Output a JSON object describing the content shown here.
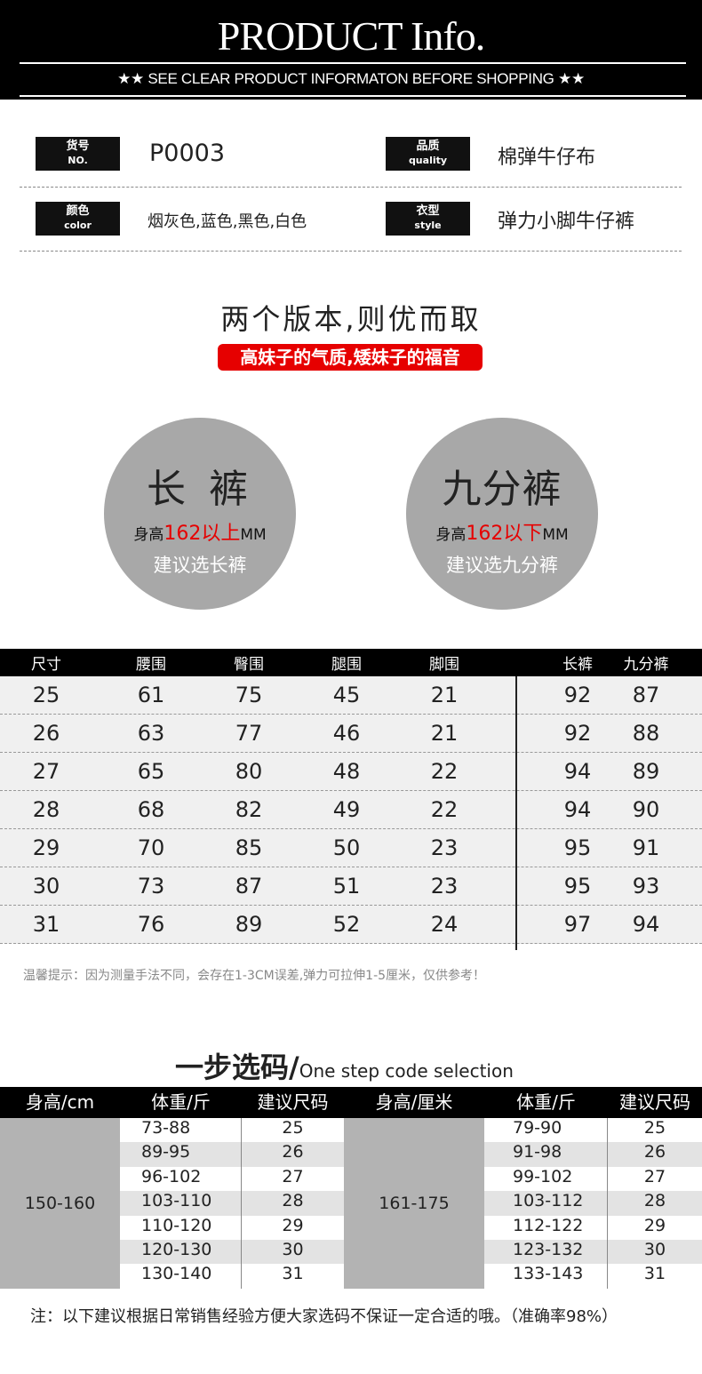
{
  "header": {
    "title": "PRODUCT Info.",
    "subtitle": "★★  SEE CLEAR PRODUCT INFORMATON BEFORE SHOPPING  ★★"
  },
  "info": [
    {
      "label": "货号",
      "label_en": "NO.",
      "value": "P0003"
    },
    {
      "label": "品质",
      "label_en": "quality",
      "value": "棉弹牛仔布"
    },
    {
      "label": "颜色",
      "label_en": "color",
      "value": "烟灰色,蓝色,黑色,白色"
    },
    {
      "label": "衣型",
      "label_en": "style",
      "value": "弹力小脚牛仔裤"
    }
  ],
  "versions": {
    "title": "两个版本,则优而取",
    "badge": "高妹子的气质,矮妹子的福音",
    "items": [
      {
        "name": "长 裤",
        "pre": "身高",
        "highlight": "162以上",
        "unit": "MM",
        "advice": "建议选长裤"
      },
      {
        "name": "九分裤",
        "pre": "身高",
        "highlight": "162以下",
        "unit": "MM",
        "advice": "建议选九分裤"
      }
    ],
    "accent": "#e60000"
  },
  "size_table": {
    "headers": [
      "尺寸",
      "腰围",
      "臀围",
      "腿围",
      "脚围",
      "长裤",
      "九分裤"
    ],
    "rows": [
      [
        "25",
        "61",
        "75",
        "45",
        "21",
        "92",
        "87"
      ],
      [
        "26",
        "63",
        "77",
        "46",
        "21",
        "92",
        "88"
      ],
      [
        "27",
        "65",
        "80",
        "48",
        "22",
        "94",
        "89"
      ],
      [
        "28",
        "68",
        "82",
        "49",
        "22",
        "94",
        "90"
      ],
      [
        "29",
        "70",
        "85",
        "50",
        "23",
        "95",
        "91"
      ],
      [
        "30",
        "73",
        "87",
        "51",
        "23",
        "95",
        "93"
      ],
      [
        "31",
        "76",
        "89",
        "52",
        "24",
        "97",
        "94"
      ]
    ],
    "note": "温馨提示：因为测量手法不同，会存在1-3CM误差,弹力可拉伸1-5厘米，仅供参考！"
  },
  "selection": {
    "title": "一步选码/",
    "title_en": "One step code selection",
    "headers": [
      "身高/cm",
      "体重/斤",
      "建议尺码",
      "身高/厘米",
      "体重/斤",
      "建议尺码"
    ],
    "left_height": "150-160",
    "right_height": "161-175",
    "left": [
      [
        "73-88",
        "25"
      ],
      [
        "89-95",
        "26"
      ],
      [
        "96-102",
        "27"
      ],
      [
        "103-110",
        "28"
      ],
      [
        "110-120",
        "29"
      ],
      [
        "120-130",
        "30"
      ],
      [
        "130-140",
        "31"
      ]
    ],
    "right": [
      [
        "79-90",
        "25"
      ],
      [
        "91-98",
        "26"
      ],
      [
        "99-102",
        "27"
      ],
      [
        "103-112",
        "28"
      ],
      [
        "112-122",
        "29"
      ],
      [
        "123-132",
        "30"
      ],
      [
        "133-143",
        "31"
      ]
    ],
    "footer": "注：以下建议根据日常销售经验方便大家选码不保证一定合适的哦。（准确率98%）"
  }
}
